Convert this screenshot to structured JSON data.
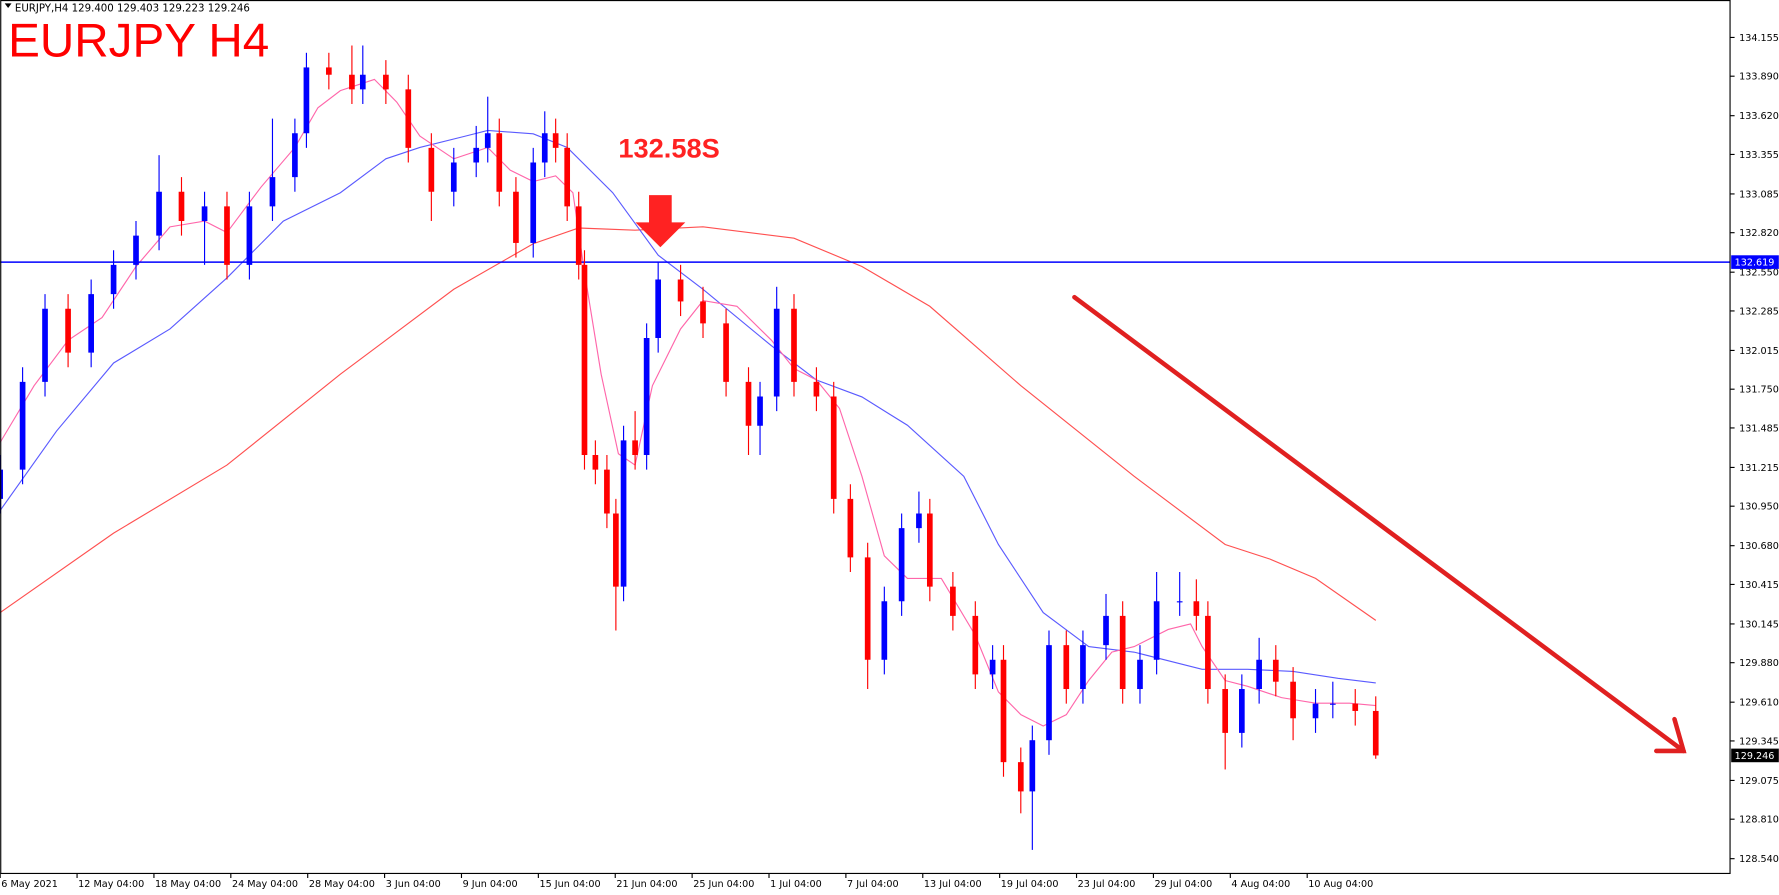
{
  "chart_data": {
    "type": "candlestick",
    "header": "EURJPY,H4  129.400 129.403 129.223 129.246",
    "title": "EURJPY H4",
    "annotation": "132.58S",
    "hline": 132.619,
    "hline_color": "#0000ff",
    "last_price": 129.246,
    "up_color": "#0000ff",
    "down_color": "#ff0000",
    "ylim": [
      128.439,
      134.411
    ],
    "yticks": [
      134.155,
      {
        "value": 133.89,
        "label": "133.890"
      },
      {
        "value": 133.62,
        "label": "133.620"
      },
      133.355,
      133.085,
      {
        "value": 132.82,
        "label": "132.820"
      },
      {
        "value": 132.55,
        "label": "132.550"
      },
      132.285,
      132.015,
      {
        "value": 131.75,
        "label": "131.750"
      },
      131.485,
      131.215,
      {
        "value": 130.95,
        "label": "130.950"
      },
      {
        "value": 130.68,
        "label": "130.680"
      },
      130.415,
      130.145,
      {
        "value": 129.88,
        "label": "129.880"
      },
      {
        "value": 129.61,
        "label": "129.610"
      },
      129.345,
      129.075,
      {
        "value": 128.81,
        "label": "128.810"
      },
      {
        "value": 128.54,
        "label": "128.540"
      }
    ],
    "xlim": [
      0,
      270
    ],
    "xticks": [
      {
        "value": 0,
        "label": "6 May 2021"
      },
      {
        "value": 12,
        "label": "12 May 04:00"
      },
      {
        "value": 24,
        "label": "18 May 04:00"
      },
      {
        "value": 36,
        "label": "24 May 04:00"
      },
      {
        "value": 48,
        "label": "28 May 04:00"
      },
      {
        "value": 60,
        "label": "3 Jun 04:00"
      },
      {
        "value": 72,
        "label": "9 Jun 04:00"
      },
      {
        "value": 84,
        "label": "15 Jun 04:00"
      },
      {
        "value": 96,
        "label": "21 Jun 04:00"
      },
      {
        "value": 108,
        "label": "25 Jun 04:00"
      },
      {
        "value": 120,
        "label": "1 Jul 04:00"
      },
      {
        "value": 132,
        "label": "7 Jul 04:00"
      },
      {
        "value": 144,
        "label": "13 Jul 04:00"
      },
      {
        "value": 156,
        "label": "19 Jul 04:00"
      },
      {
        "value": 168,
        "label": "23 Jul 04:00"
      },
      {
        "value": 180,
        "label": "29 Jul 04:00"
      },
      {
        "value": 192,
        "label": "4 Aug 04:00"
      },
      {
        "value": 204,
        "label": "10 Aug 04:00"
      }
    ],
    "x": [
      0,
      3.5,
      7,
      10.6,
      14.2,
      17.7,
      21.2,
      24.8,
      28.3,
      31.9,
      35.4,
      38.9,
      42.5,
      46,
      47.8,
      51.3,
      54.9,
      56.6,
      60.2,
      63.7,
      67.3,
      70.8,
      74.3,
      76.1,
      77.9,
      80.5,
      83.2,
      85,
      86.7,
      88.5,
      90.3,
      91.2,
      92.9,
      94.7,
      96.1,
      97.3,
      99.1,
      100.9,
      102.7,
      106.2,
      109.7,
      113.3,
      116.8,
      118.6,
      121.2,
      123.9,
      127.4,
      130.1,
      132.7,
      135.4,
      138,
      140.7,
      143.4,
      145.1,
      148.7,
      152.2,
      154.9,
      156.6,
      159.3,
      161.1,
      163.7,
      166.4,
      169,
      172.6,
      175.2,
      177.9,
      180.5,
      184.1,
      186.7,
      188.5,
      191.2,
      193.8,
      196.5,
      199.1,
      201.8,
      205.3,
      208,
      211.5,
      214.7
    ],
    "open": [
      131.0,
      131.2,
      131.8,
      132.3,
      132.0,
      132.4,
      132.6,
      132.8,
      133.1,
      132.9,
      133.0,
      132.6,
      133.0,
      133.2,
      133.5,
      133.95,
      133.9,
      133.8,
      133.9,
      133.8,
      133.4,
      133.1,
      133.3,
      133.4,
      133.5,
      133.1,
      132.75,
      133.3,
      133.5,
      133.4,
      133.0,
      132.6,
      131.3,
      131.2,
      130.9,
      130.4,
      131.4,
      131.3,
      132.1,
      132.5,
      132.35,
      132.2,
      131.8,
      131.5,
      131.7,
      132.3,
      131.8,
      131.7,
      131.0,
      130.6,
      129.9,
      130.3,
      130.8,
      130.9,
      130.4,
      130.2,
      129.8,
      129.9,
      129.2,
      129.0,
      129.35,
      130.0,
      129.7,
      130.0,
      130.2,
      129.7,
      129.9,
      130.3,
      130.3,
      130.2,
      129.7,
      129.4,
      129.7,
      129.9,
      129.75,
      129.5,
      129.6,
      129.6,
      129.55
    ],
    "high": [
      131.3,
      131.9,
      132.4,
      132.4,
      132.5,
      132.7,
      132.9,
      133.35,
      133.2,
      133.1,
      133.1,
      133.1,
      133.6,
      133.6,
      134.05,
      134.05,
      134.1,
      134.1,
      134.0,
      133.9,
      133.5,
      133.4,
      133.55,
      133.75,
      133.6,
      133.2,
      133.4,
      133.65,
      133.6,
      133.5,
      133.1,
      132.7,
      131.4,
      131.3,
      131.0,
      131.5,
      131.6,
      132.2,
      132.62,
      132.6,
      132.45,
      132.3,
      131.9,
      131.8,
      132.45,
      132.4,
      131.9,
      131.8,
      131.1,
      130.7,
      130.4,
      130.9,
      131.05,
      131.0,
      130.5,
      130.3,
      130.0,
      130.0,
      129.3,
      129.45,
      130.1,
      130.1,
      130.1,
      130.35,
      130.3,
      130.0,
      130.5,
      130.5,
      130.45,
      130.3,
      129.8,
      129.8,
      130.05,
      130.0,
      129.85,
      129.7,
      129.75,
      129.7,
      129.65
    ],
    "low": [
      130.9,
      131.1,
      131.7,
      131.9,
      131.9,
      132.3,
      132.5,
      132.7,
      132.8,
      132.6,
      132.5,
      132.5,
      132.9,
      133.1,
      133.4,
      133.8,
      133.7,
      133.7,
      133.7,
      133.3,
      132.9,
      133.0,
      133.2,
      133.3,
      133.0,
      132.65,
      132.65,
      133.2,
      133.3,
      132.9,
      132.5,
      131.2,
      131.1,
      130.8,
      130.1,
      130.3,
      131.2,
      131.2,
      132.0,
      132.25,
      132.1,
      131.7,
      131.3,
      131.3,
      131.6,
      131.7,
      131.6,
      130.9,
      130.5,
      129.7,
      129.8,
      130.2,
      130.7,
      130.3,
      130.1,
      129.7,
      129.7,
      129.1,
      128.85,
      128.6,
      129.25,
      129.6,
      129.6,
      129.9,
      129.6,
      129.6,
      129.8,
      130.2,
      130.1,
      129.6,
      129.15,
      129.3,
      129.6,
      129.65,
      129.35,
      129.4,
      129.5,
      129.45,
      129.223
    ],
    "close": [
      131.2,
      131.8,
      132.3,
      132.0,
      132.4,
      132.6,
      132.8,
      133.1,
      132.9,
      133.0,
      132.6,
      133.0,
      133.2,
      133.5,
      133.95,
      133.9,
      133.8,
      133.9,
      133.8,
      133.4,
      133.1,
      133.3,
      133.4,
      133.5,
      133.1,
      132.75,
      133.3,
      133.5,
      133.4,
      133.0,
      132.6,
      131.3,
      131.2,
      130.9,
      130.4,
      131.4,
      131.3,
      132.1,
      132.5,
      132.35,
      132.2,
      131.8,
      131.5,
      131.7,
      132.3,
      131.8,
      131.7,
      131.0,
      130.6,
      129.9,
      130.3,
      130.8,
      130.9,
      130.4,
      130.2,
      129.8,
      129.9,
      129.2,
      129.0,
      129.35,
      130.0,
      129.7,
      130.0,
      130.2,
      129.7,
      129.9,
      130.3,
      130.3,
      130.2,
      129.7,
      129.4,
      129.7,
      129.9,
      129.75,
      129.5,
      129.6,
      129.6,
      129.55,
      129.246
    ],
    "lines": [
      {
        "color": "#ff5050",
        "x": [
          0,
          17.7,
          35.4,
          53.1,
          70.8,
          83.2,
          90.3,
          99.1,
          109.7,
          123.9,
          134.5,
          145.1,
          159.3,
          177,
          191.2,
          198.2,
          205.3,
          214.7
        ],
        "values": [
          130.223,
          130.766,
          131.231,
          131.852,
          132.433,
          132.744,
          132.852,
          132.837,
          132.86,
          132.782,
          132.589,
          132.317,
          131.774,
          131.154,
          130.688,
          130.588,
          130.456,
          130.169
        ]
      },
      {
        "color": "#5a5aff",
        "x": [
          0,
          8.8,
          17.7,
          26.5,
          35.4,
          44.2,
          53.1,
          60.2,
          65.5,
          72.6,
          76.1,
          83.2,
          88.5,
          95.6,
          102.7,
          109.7,
          120.4,
          127.4,
          134.5,
          141.6,
          150.4,
          155.8,
          162.8,
          169.9,
          177,
          187.6,
          194.7,
          201.8,
          208.8,
          214.7
        ],
        "values": [
          130.921,
          131.464,
          131.929,
          132.162,
          132.511,
          132.899,
          133.093,
          133.325,
          133.403,
          133.48,
          133.519,
          133.496,
          133.403,
          133.093,
          132.666,
          132.433,
          132.046,
          131.813,
          131.697,
          131.503,
          131.154,
          130.688,
          130.223,
          129.99,
          129.952,
          129.835,
          129.835,
          129.82,
          129.773,
          129.742
        ]
      },
      {
        "color": "#ff66aa",
        "x": [
          0,
          5.3,
          10.6,
          15.9,
          21.2,
          26.5,
          31.9,
          35.4,
          40.7,
          46,
          49.6,
          53.1,
          58.4,
          61.9,
          65.5,
          70.8,
          76.1,
          79.6,
          83.2,
          86.7,
          89.4,
          91.2,
          93.8,
          96.5,
          99.1,
          101.8,
          106.2,
          109.7,
          115,
          120.4,
          123.9,
          127.4,
          131,
          134.5,
          138,
          141.6,
          146.9,
          152.2,
          155.8,
          159.3,
          162.8,
          166.4,
          169.9,
          173.5,
          177,
          182.3,
          185.8,
          187.6,
          191.2,
          194.7,
          200,
          205.3,
          210.6,
          214.7
        ],
        "values": [
          131.386,
          131.774,
          132.084,
          132.239,
          132.588,
          132.86,
          132.899,
          132.821,
          133.131,
          133.403,
          133.674,
          133.791,
          133.868,
          133.713,
          133.48,
          133.325,
          133.403,
          133.248,
          133.17,
          133.209,
          133.093,
          132.55,
          131.852,
          131.309,
          131.231,
          131.774,
          132.162,
          132.356,
          132.317,
          132.084,
          131.891,
          131.813,
          131.619,
          131.154,
          130.611,
          130.456,
          130.456,
          130.068,
          129.68,
          129.525,
          129.447,
          129.525,
          129.758,
          129.952,
          129.99,
          130.107,
          130.145,
          129.99,
          129.758,
          129.719,
          129.641,
          129.603,
          129.603,
          129.587
        ]
      }
    ]
  }
}
